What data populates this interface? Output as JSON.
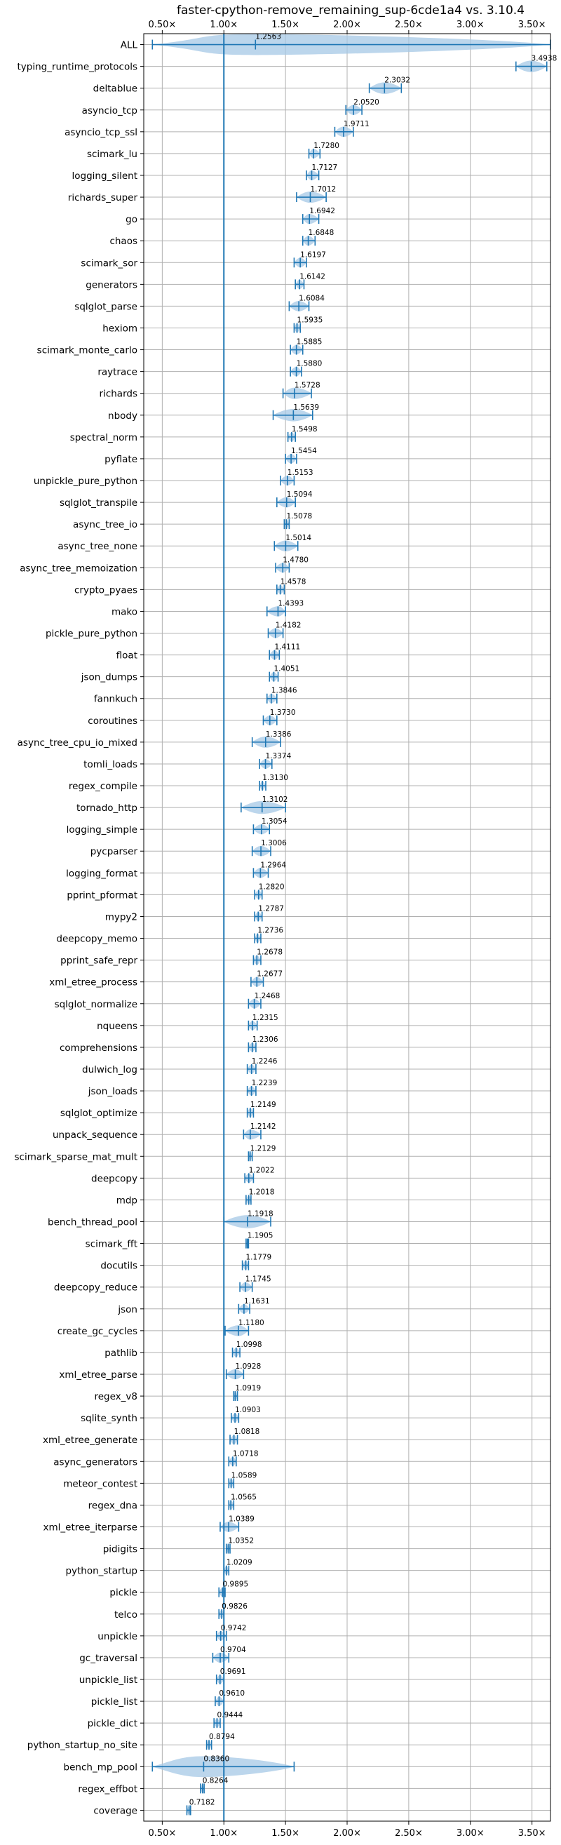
{
  "chart_data": {
    "type": "violin",
    "title": "faster-cpython-remove_remaining_sup-6cde1a4 vs. 3.10.4",
    "xlabel": "",
    "ylabel": "",
    "xlim": [
      0.35,
      3.65
    ],
    "x_ticks": [
      0.5,
      1.0,
      1.5,
      2.0,
      2.5,
      3.0,
      3.5
    ],
    "x_tick_labels": [
      "0.50×",
      "1.00×",
      "1.50×",
      "2.00×",
      "2.50×",
      "3.00×",
      "3.50×"
    ],
    "x_tick_positions": [
      "top",
      "bottom"
    ],
    "reference_line": 1.0,
    "grid": true,
    "color": "#1f77b4",
    "body_color": "#a6c8e6",
    "benchmarks": [
      {
        "name": "ALL",
        "mean": 1.2563,
        "label": "1.2563",
        "min": 0.42,
        "max": 3.65
      },
      {
        "name": "typing_runtime_protocols",
        "mean": 3.4938,
        "label": "3.4938",
        "min": 3.37,
        "max": 3.62
      },
      {
        "name": "deltablue",
        "mean": 2.3032,
        "label": "2.3032",
        "min": 2.18,
        "max": 2.44
      },
      {
        "name": "asyncio_tcp",
        "mean": 2.052,
        "label": "2.0520",
        "min": 1.99,
        "max": 2.12
      },
      {
        "name": "asyncio_tcp_ssl",
        "mean": 1.9711,
        "label": "1.9711",
        "min": 1.9,
        "max": 2.05
      },
      {
        "name": "scimark_lu",
        "mean": 1.728,
        "label": "1.7280",
        "min": 1.69,
        "max": 1.78
      },
      {
        "name": "logging_silent",
        "mean": 1.7127,
        "label": "1.7127",
        "min": 1.67,
        "max": 1.77
      },
      {
        "name": "richards_super",
        "mean": 1.7012,
        "label": "1.7012",
        "min": 1.59,
        "max": 1.83
      },
      {
        "name": "go",
        "mean": 1.6942,
        "label": "1.6942",
        "min": 1.64,
        "max": 1.77
      },
      {
        "name": "chaos",
        "mean": 1.6848,
        "label": "1.6848",
        "min": 1.64,
        "max": 1.74
      },
      {
        "name": "scimark_sor",
        "mean": 1.6197,
        "label": "1.6197",
        "min": 1.57,
        "max": 1.67
      },
      {
        "name": "generators",
        "mean": 1.6142,
        "label": "1.6142",
        "min": 1.58,
        "max": 1.65
      },
      {
        "name": "sqlglot_parse",
        "mean": 1.6084,
        "label": "1.6084",
        "min": 1.53,
        "max": 1.69
      },
      {
        "name": "hexiom",
        "mean": 1.5935,
        "label": "1.5935",
        "min": 1.57,
        "max": 1.62
      },
      {
        "name": "scimark_monte_carlo",
        "mean": 1.5885,
        "label": "1.5885",
        "min": 1.54,
        "max": 1.64
      },
      {
        "name": "raytrace",
        "mean": 1.588,
        "label": "1.5880",
        "min": 1.54,
        "max": 1.63
      },
      {
        "name": "richards",
        "mean": 1.5728,
        "label": "1.5728",
        "min": 1.48,
        "max": 1.71
      },
      {
        "name": "nbody",
        "mean": 1.5639,
        "label": "1.5639",
        "min": 1.4,
        "max": 1.72
      },
      {
        "name": "spectral_norm",
        "mean": 1.5498,
        "label": "1.5498",
        "min": 1.52,
        "max": 1.58
      },
      {
        "name": "pyflate",
        "mean": 1.5454,
        "label": "1.5454",
        "min": 1.5,
        "max": 1.59
      },
      {
        "name": "unpickle_pure_python",
        "mean": 1.5153,
        "label": "1.5153",
        "min": 1.46,
        "max": 1.57
      },
      {
        "name": "sqlglot_transpile",
        "mean": 1.5094,
        "label": "1.5094",
        "min": 1.43,
        "max": 1.58
      },
      {
        "name": "async_tree_io",
        "mean": 1.5078,
        "label": "1.5078",
        "min": 1.49,
        "max": 1.53
      },
      {
        "name": "async_tree_none",
        "mean": 1.5014,
        "label": "1.5014",
        "min": 1.41,
        "max": 1.6
      },
      {
        "name": "async_tree_memoization",
        "mean": 1.478,
        "label": "1.4780",
        "min": 1.42,
        "max": 1.53
      },
      {
        "name": "crypto_pyaes",
        "mean": 1.4578,
        "label": "1.4578",
        "min": 1.43,
        "max": 1.49
      },
      {
        "name": "mako",
        "mean": 1.4393,
        "label": "1.4393",
        "min": 1.35,
        "max": 1.5
      },
      {
        "name": "pickle_pure_python",
        "mean": 1.4182,
        "label": "1.4182",
        "min": 1.36,
        "max": 1.48
      },
      {
        "name": "float",
        "mean": 1.4111,
        "label": "1.4111",
        "min": 1.37,
        "max": 1.45
      },
      {
        "name": "json_dumps",
        "mean": 1.4051,
        "label": "1.4051",
        "min": 1.37,
        "max": 1.44
      },
      {
        "name": "fannkuch",
        "mean": 1.3846,
        "label": "1.3846",
        "min": 1.35,
        "max": 1.43
      },
      {
        "name": "coroutines",
        "mean": 1.373,
        "label": "1.3730",
        "min": 1.32,
        "max": 1.43
      },
      {
        "name": "async_tree_cpu_io_mixed",
        "mean": 1.3386,
        "label": "1.3386",
        "min": 1.23,
        "max": 1.46
      },
      {
        "name": "tomli_loads",
        "mean": 1.3374,
        "label": "1.3374",
        "min": 1.29,
        "max": 1.39
      },
      {
        "name": "regex_compile",
        "mean": 1.313,
        "label": "1.3130",
        "min": 1.29,
        "max": 1.34
      },
      {
        "name": "tornado_http",
        "mean": 1.3102,
        "label": "1.3102",
        "min": 1.14,
        "max": 1.5
      },
      {
        "name": "logging_simple",
        "mean": 1.3054,
        "label": "1.3054",
        "min": 1.24,
        "max": 1.37
      },
      {
        "name": "pycparser",
        "mean": 1.3006,
        "label": "1.3006",
        "min": 1.23,
        "max": 1.38
      },
      {
        "name": "logging_format",
        "mean": 1.2964,
        "label": "1.2964",
        "min": 1.24,
        "max": 1.36
      },
      {
        "name": "pprint_pformat",
        "mean": 1.282,
        "label": "1.2820",
        "min": 1.25,
        "max": 1.31
      },
      {
        "name": "mypy2",
        "mean": 1.2787,
        "label": "1.2787",
        "min": 1.25,
        "max": 1.31
      },
      {
        "name": "deepcopy_memo",
        "mean": 1.2736,
        "label": "1.2736",
        "min": 1.25,
        "max": 1.3
      },
      {
        "name": "pprint_safe_repr",
        "mean": 1.2678,
        "label": "1.2678",
        "min": 1.24,
        "max": 1.3
      },
      {
        "name": "xml_etree_process",
        "mean": 1.2677,
        "label": "1.2677",
        "min": 1.22,
        "max": 1.32
      },
      {
        "name": "sqlglot_normalize",
        "mean": 1.2468,
        "label": "1.2468",
        "min": 1.2,
        "max": 1.3
      },
      {
        "name": "nqueens",
        "mean": 1.2315,
        "label": "1.2315",
        "min": 1.2,
        "max": 1.27
      },
      {
        "name": "comprehensions",
        "mean": 1.2306,
        "label": "1.2306",
        "min": 1.2,
        "max": 1.26
      },
      {
        "name": "dulwich_log",
        "mean": 1.2246,
        "label": "1.2246",
        "min": 1.19,
        "max": 1.26
      },
      {
        "name": "json_loads",
        "mean": 1.2239,
        "label": "1.2239",
        "min": 1.19,
        "max": 1.26
      },
      {
        "name": "sqlglot_optimize",
        "mean": 1.2149,
        "label": "1.2149",
        "min": 1.19,
        "max": 1.24
      },
      {
        "name": "unpack_sequence",
        "mean": 1.2142,
        "label": "1.2142",
        "min": 1.16,
        "max": 1.3
      },
      {
        "name": "scimark_sparse_mat_mult",
        "mean": 1.2129,
        "label": "1.2129",
        "min": 1.2,
        "max": 1.23
      },
      {
        "name": "deepcopy",
        "mean": 1.2022,
        "label": "1.2022",
        "min": 1.17,
        "max": 1.24
      },
      {
        "name": "mdp",
        "mean": 1.2018,
        "label": "1.2018",
        "min": 1.18,
        "max": 1.22
      },
      {
        "name": "bench_thread_pool",
        "mean": 1.1918,
        "label": "1.1918",
        "min": 1.0,
        "max": 1.38
      },
      {
        "name": "scimark_fft",
        "mean": 1.1905,
        "label": "1.1905",
        "min": 1.18,
        "max": 1.2
      },
      {
        "name": "docutils",
        "mean": 1.1779,
        "label": "1.1779",
        "min": 1.15,
        "max": 1.2
      },
      {
        "name": "deepcopy_reduce",
        "mean": 1.1745,
        "label": "1.1745",
        "min": 1.13,
        "max": 1.23
      },
      {
        "name": "json",
        "mean": 1.1631,
        "label": "1.1631",
        "min": 1.12,
        "max": 1.21
      },
      {
        "name": "create_gc_cycles",
        "mean": 1.118,
        "label": "1.1180",
        "min": 1.01,
        "max": 1.2
      },
      {
        "name": "pathlib",
        "mean": 1.0998,
        "label": "1.0998",
        "min": 1.07,
        "max": 1.13
      },
      {
        "name": "xml_etree_parse",
        "mean": 1.0928,
        "label": "1.0928",
        "min": 1.02,
        "max": 1.16
      },
      {
        "name": "regex_v8",
        "mean": 1.0919,
        "label": "1.0919",
        "min": 1.08,
        "max": 1.11
      },
      {
        "name": "sqlite_synth",
        "mean": 1.0903,
        "label": "1.0903",
        "min": 1.06,
        "max": 1.12
      },
      {
        "name": "xml_etree_generate",
        "mean": 1.0818,
        "label": "1.0818",
        "min": 1.05,
        "max": 1.11
      },
      {
        "name": "async_generators",
        "mean": 1.0718,
        "label": "1.0718",
        "min": 1.04,
        "max": 1.1
      },
      {
        "name": "meteor_contest",
        "mean": 1.0589,
        "label": "1.0589",
        "min": 1.04,
        "max": 1.08
      },
      {
        "name": "regex_dna",
        "mean": 1.0565,
        "label": "1.0565",
        "min": 1.04,
        "max": 1.08
      },
      {
        "name": "xml_etree_iterparse",
        "mean": 1.0389,
        "label": "1.0389",
        "min": 0.97,
        "max": 1.12
      },
      {
        "name": "pidigits",
        "mean": 1.0352,
        "label": "1.0352",
        "min": 1.02,
        "max": 1.05
      },
      {
        "name": "python_startup",
        "mean": 1.0209,
        "label": "1.0209",
        "min": 1.0,
        "max": 1.04
      },
      {
        "name": "pickle",
        "mean": 0.9895,
        "label": "0.9895",
        "min": 0.96,
        "max": 1.01
      },
      {
        "name": "telco",
        "mean": 0.9826,
        "label": "0.9826",
        "min": 0.96,
        "max": 1.0
      },
      {
        "name": "unpickle",
        "mean": 0.9742,
        "label": "0.9742",
        "min": 0.94,
        "max": 1.02
      },
      {
        "name": "gc_traversal",
        "mean": 0.9704,
        "label": "0.9704",
        "min": 0.91,
        "max": 1.04
      },
      {
        "name": "unpickle_list",
        "mean": 0.9691,
        "label": "0.9691",
        "min": 0.94,
        "max": 1.0
      },
      {
        "name": "pickle_list",
        "mean": 0.961,
        "label": "0.9610",
        "min": 0.93,
        "max": 1.0
      },
      {
        "name": "pickle_dict",
        "mean": 0.9444,
        "label": "0.9444",
        "min": 0.92,
        "max": 0.97
      },
      {
        "name": "python_startup_no_site",
        "mean": 0.8794,
        "label": "0.8794",
        "min": 0.86,
        "max": 0.9
      },
      {
        "name": "bench_mp_pool",
        "mean": 0.836,
        "label": "0.8360",
        "min": 0.42,
        "max": 1.57
      },
      {
        "name": "regex_effbot",
        "mean": 0.8264,
        "label": "0.8264",
        "min": 0.81,
        "max": 0.84
      },
      {
        "name": "coverage",
        "mean": 0.7182,
        "label": "0.7182",
        "min": 0.7,
        "max": 0.73
      }
    ]
  }
}
